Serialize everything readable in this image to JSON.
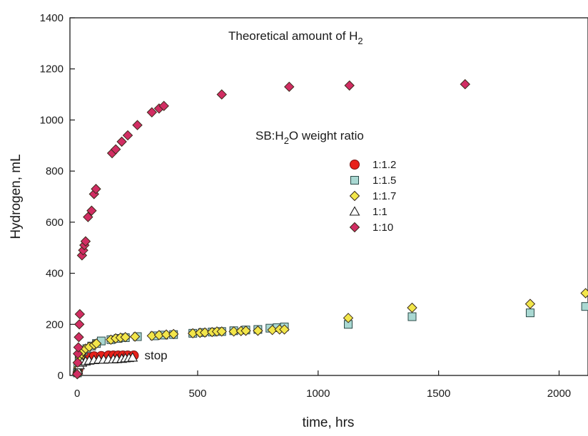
{
  "chart_data": {
    "type": "scatter",
    "title": "",
    "xlabel": "time, hrs",
    "ylabel": "Hydrogen, mL",
    "xlim": [
      -30,
      2120
    ],
    "ylim": [
      0,
      1400
    ],
    "x_ticks": [
      0,
      500,
      1000,
      1500,
      2000
    ],
    "y_ticks": [
      0,
      200,
      400,
      600,
      800,
      1000,
      1200,
      1400
    ],
    "grid": false,
    "legend": {
      "title_parts": [
        "SB:H",
        "2",
        "O weight ratio"
      ],
      "placement": "center-right"
    },
    "annotations": {
      "theoretical": {
        "text_main": "Theoretical amount of H",
        "text_sub": "2"
      },
      "stop": {
        "text": "stop",
        "x": 235,
        "y": 80
      }
    },
    "series": [
      {
        "name": "1:1.2",
        "marker": "circle",
        "color": "#e8211b",
        "points": [
          [
            2,
            10
          ],
          [
            5,
            25
          ],
          [
            10,
            45
          ],
          [
            20,
            60
          ],
          [
            35,
            68
          ],
          [
            50,
            72
          ],
          [
            70,
            75
          ],
          [
            100,
            76
          ],
          [
            130,
            78
          ],
          [
            150,
            78
          ],
          [
            170,
            78
          ],
          [
            190,
            78
          ],
          [
            210,
            78
          ],
          [
            235,
            78
          ]
        ]
      },
      {
        "name": "1:1.5",
        "marker": "square",
        "color": "#a9d8d2",
        "points": [
          [
            1,
            10
          ],
          [
            3,
            30
          ],
          [
            8,
            60
          ],
          [
            15,
            80
          ],
          [
            25,
            95
          ],
          [
            40,
            105
          ],
          [
            60,
            115
          ],
          [
            80,
            125
          ],
          [
            100,
            135
          ],
          [
            140,
            140
          ],
          [
            170,
            145
          ],
          [
            200,
            148
          ],
          [
            250,
            152
          ],
          [
            320,
            155
          ],
          [
            360,
            158
          ],
          [
            400,
            160
          ],
          [
            480,
            165
          ],
          [
            520,
            168
          ],
          [
            560,
            170
          ],
          [
            600,
            172
          ],
          [
            650,
            175
          ],
          [
            700,
            178
          ],
          [
            750,
            180
          ],
          [
            800,
            185
          ],
          [
            830,
            187
          ],
          [
            860,
            190
          ],
          [
            1125,
            200
          ],
          [
            1390,
            230
          ],
          [
            1880,
            245
          ],
          [
            2110,
            270
          ]
        ]
      },
      {
        "name": "1:1.7",
        "marker": "diamond",
        "color": "#f2e64a",
        "points": [
          [
            1,
            5
          ],
          [
            3,
            15
          ],
          [
            5,
            30
          ],
          [
            8,
            50
          ],
          [
            12,
            70
          ],
          [
            18,
            85
          ],
          [
            25,
            95
          ],
          [
            35,
            105
          ],
          [
            50,
            112
          ],
          [
            70,
            120
          ],
          [
            80,
            125
          ],
          [
            140,
            140
          ],
          [
            160,
            145
          ],
          [
            180,
            148
          ],
          [
            200,
            150
          ],
          [
            240,
            152
          ],
          [
            310,
            155
          ],
          [
            340,
            158
          ],
          [
            370,
            160
          ],
          [
            400,
            162
          ],
          [
            480,
            165
          ],
          [
            510,
            167
          ],
          [
            530,
            168
          ],
          [
            560,
            170
          ],
          [
            580,
            172
          ],
          [
            600,
            172
          ],
          [
            650,
            172
          ],
          [
            680,
            174
          ],
          [
            700,
            175
          ],
          [
            750,
            175
          ],
          [
            810,
            178
          ],
          [
            840,
            180
          ],
          [
            860,
            180
          ],
          [
            1125,
            225
          ],
          [
            1390,
            265
          ],
          [
            1880,
            280
          ],
          [
            2110,
            322
          ]
        ]
      },
      {
        "name": "1:1",
        "marker": "triangle",
        "color": "#ffffff",
        "points": [
          [
            3,
            20
          ],
          [
            10,
            40
          ],
          [
            20,
            50
          ],
          [
            35,
            55
          ],
          [
            50,
            58
          ],
          [
            70,
            60
          ],
          [
            90,
            62
          ],
          [
            110,
            62
          ],
          [
            130,
            63
          ],
          [
            150,
            63
          ],
          [
            165,
            64
          ],
          [
            185,
            65
          ],
          [
            200,
            67
          ],
          [
            215,
            68
          ],
          [
            230,
            70
          ]
        ]
      },
      {
        "name": "1:10",
        "marker": "diamond",
        "color": "#d12d63",
        "points": [
          [
            0,
            5
          ],
          [
            2,
            50
          ],
          [
            3,
            85
          ],
          [
            5,
            110
          ],
          [
            7,
            150
          ],
          [
            9,
            200
          ],
          [
            11,
            240
          ],
          [
            20,
            470
          ],
          [
            25,
            490
          ],
          [
            30,
            510
          ],
          [
            35,
            525
          ],
          [
            45,
            620
          ],
          [
            60,
            645
          ],
          [
            70,
            710
          ],
          [
            78,
            730
          ],
          [
            145,
            870
          ],
          [
            160,
            885
          ],
          [
            185,
            915
          ],
          [
            210,
            940
          ],
          [
            250,
            980
          ],
          [
            310,
            1030
          ],
          [
            340,
            1045
          ],
          [
            360,
            1055
          ],
          [
            600,
            1100
          ],
          [
            880,
            1130
          ],
          [
            1130,
            1135
          ],
          [
            1610,
            1140
          ]
        ]
      }
    ]
  }
}
